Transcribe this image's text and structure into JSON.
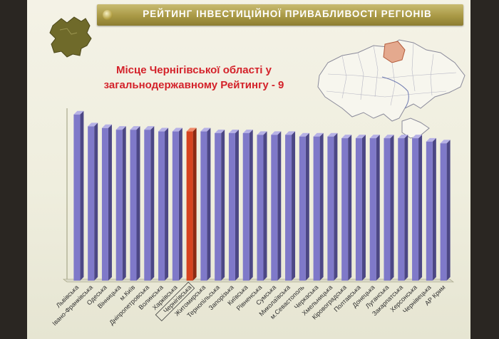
{
  "header": {
    "title": "РЕЙТИНГ ІНВЕСТИЦІЙНОЇ ПРИВАБЛИВОСТІ РЕГІОНІВ"
  },
  "subtitle": {
    "line1": "Місце Чернігівської області у",
    "line2": "загальнодержавному Рейтингу  - 9"
  },
  "colors": {
    "bar": "#7f79c9",
    "highlight": "#d6431f",
    "banner": "#a99945",
    "subtitle": "#d4222a"
  },
  "map": {
    "icon": "ukraine-map-icon",
    "highlight_region": "Чернігівська"
  },
  "logo": {
    "icon": "chernihiv-region-shape-icon"
  },
  "chart_data": {
    "type": "bar",
    "title": "",
    "xlabel": "",
    "ylabel": "",
    "ylim": [
      0,
      100
    ],
    "highlight_category": "Чернігівська",
    "categories": [
      "Львівська",
      "Івано-Франківська",
      "Одеська",
      "Вінницька",
      "м.Київ",
      "Дніпропетровська",
      "Волинська",
      "Харківська",
      "Чернігівська",
      "Житомирська",
      "Тернопільська",
      "Запорізька",
      "Київська",
      "Рівненська",
      "Сумська",
      "Миколаївська",
      "м.Севастополь",
      "Черкаська",
      "Хмельницька",
      "Кіровоградська",
      "Полтавська",
      "Донецька",
      "Луганська",
      "Закарпатська",
      "Херсонська",
      "Чернівецька",
      "АР Крим"
    ],
    "values": [
      98,
      91,
      90,
      89,
      89,
      89,
      88,
      88,
      88,
      88,
      87,
      87,
      87,
      86,
      86,
      86,
      85,
      85,
      85,
      84,
      84,
      84,
      84,
      84,
      84,
      82,
      81
    ]
  }
}
